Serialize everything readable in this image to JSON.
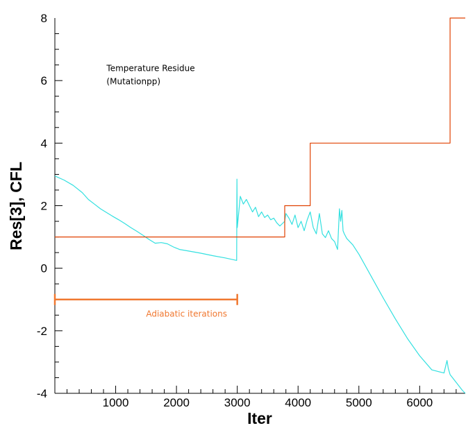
{
  "chart_data": {
    "type": "line",
    "xlabel": "Iter",
    "ylabel": "Res[3], CFL",
    "xlim": [
      0,
      6750
    ],
    "ylim": [
      -4,
      8
    ],
    "xticks_major": [
      1000,
      2000,
      3000,
      4000,
      5000,
      6000
    ],
    "xtick_labels": [
      "1000",
      "2000",
      "3000",
      "4000",
      "5000",
      "6000"
    ],
    "yticks_major": [
      -4,
      -2,
      0,
      2,
      4,
      6,
      8
    ],
    "ytick_labels": [
      "-4",
      "-2",
      "0",
      "2",
      "4",
      "6",
      "8"
    ],
    "grid": false,
    "series": [
      {
        "key": "residual",
        "color": "#33e0e0",
        "x": [
          0,
          150,
          300,
          450,
          550,
          650,
          750,
          850,
          950,
          1050,
          1150,
          1250,
          1350,
          1450,
          1550,
          1650,
          1750,
          1850,
          1950,
          2050,
          2200,
          2400,
          2600,
          2800,
          2990,
          2995,
          3000,
          3050,
          3100,
          3150,
          3200,
          3250,
          3300,
          3350,
          3400,
          3450,
          3500,
          3550,
          3600,
          3650,
          3700,
          3780,
          3800,
          3850,
          3900,
          3950,
          4000,
          4050,
          4100,
          4150,
          4200,
          4250,
          4300,
          4350,
          4400,
          4450,
          4500,
          4550,
          4600,
          4650,
          4680,
          4700,
          4720,
          4740,
          4760,
          4800,
          4900,
          5000,
          5200,
          5400,
          5600,
          5800,
          6000,
          6200,
          6400,
          6450,
          6470,
          6500,
          6600,
          6700,
          6750
        ],
        "y": [
          2.95,
          2.82,
          2.65,
          2.42,
          2.2,
          2.05,
          1.9,
          1.78,
          1.66,
          1.55,
          1.43,
          1.3,
          1.18,
          1.05,
          0.92,
          0.8,
          0.82,
          0.78,
          0.68,
          0.6,
          0.55,
          0.48,
          0.4,
          0.33,
          0.25,
          2.85,
          1.3,
          2.3,
          2.05,
          2.2,
          2.0,
          1.8,
          1.95,
          1.65,
          1.8,
          1.62,
          1.7,
          1.55,
          1.6,
          1.45,
          1.35,
          1.5,
          1.75,
          1.6,
          1.4,
          1.7,
          1.3,
          1.5,
          1.2,
          1.55,
          1.8,
          1.3,
          1.1,
          1.75,
          1.1,
          0.98,
          1.2,
          0.95,
          0.85,
          0.6,
          1.9,
          1.5,
          1.85,
          1.2,
          1.1,
          0.95,
          0.75,
          0.45,
          -0.25,
          -0.95,
          -1.62,
          -2.25,
          -2.8,
          -3.25,
          -3.35,
          -2.95,
          -3.2,
          -3.4,
          -3.65,
          -3.9,
          -4.0
        ]
      },
      {
        "key": "cfl",
        "color": "#e04000",
        "x": [
          0,
          3780,
          3780,
          4200,
          4200,
          6500,
          6500,
          6750
        ],
        "y": [
          1,
          1,
          2,
          2,
          4,
          4,
          8,
          8
        ]
      }
    ],
    "annotations": [
      {
        "lines": [
          "Temperature Residue",
          "(Mutationpp)"
        ],
        "x": 850,
        "y": 6.3,
        "color": "#000000"
      },
      {
        "label": "Adiabatic iterations",
        "x": 1500,
        "y": -1.55,
        "color": "#f07830"
      }
    ],
    "bracket": {
      "x_start": 0,
      "x_end": 3000,
      "y": -1.0,
      "color": "#f07830"
    }
  }
}
